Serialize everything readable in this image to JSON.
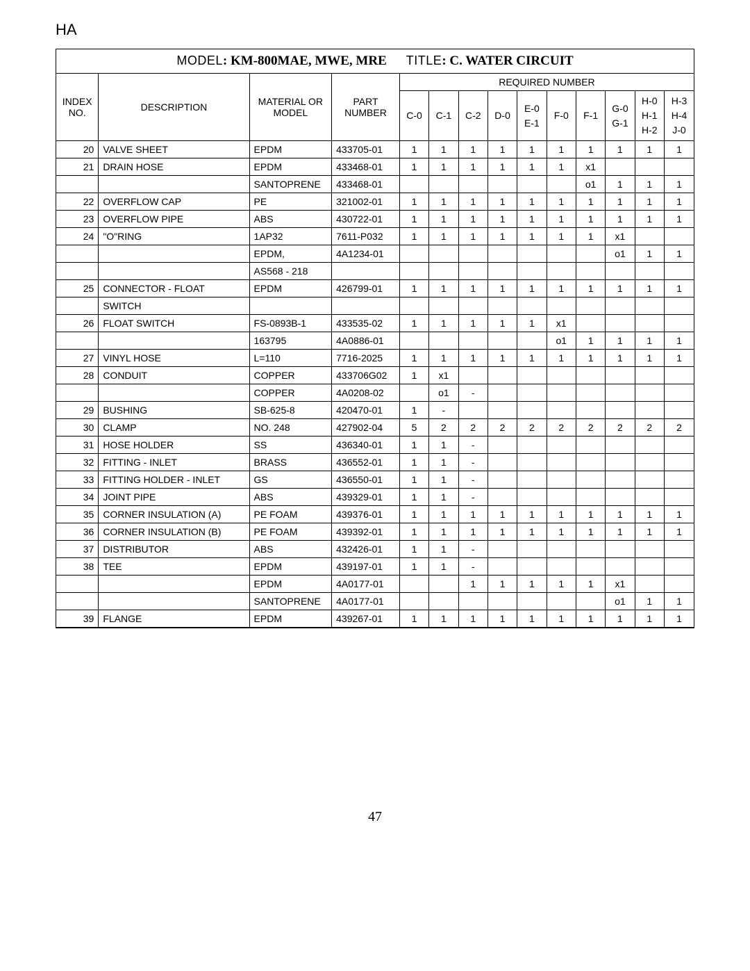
{
  "topLabel": "HA",
  "header": {
    "modelLabel": "MODEL",
    "modelValue": ": KM-800MAE, MWE, MRE",
    "titleLabel": "TITLE",
    "titleValue": ": C. WATER CIRCUIT"
  },
  "columns": {
    "index": "INDEX NO.",
    "description": "DESCRIPTION",
    "material": "MATERIAL OR MODEL",
    "part": "PART NUMBER",
    "required": "REQUIRED NUMBER",
    "subs": [
      [
        "C-0"
      ],
      [
        "C-1"
      ],
      [
        "C-2"
      ],
      [
        "D-0"
      ],
      [
        "E-0",
        "E-1"
      ],
      [
        "F-0"
      ],
      [
        "F-1"
      ],
      [
        "G-0",
        "G-1"
      ],
      [
        "H-0",
        "H-1",
        "H-2"
      ],
      [
        "H-3",
        "H-4",
        "J-0"
      ]
    ]
  },
  "rows": [
    {
      "idx": "20",
      "desc": "VALVE SHEET",
      "mat": "EPDM",
      "part": "433705-01",
      "n": [
        "1",
        "1",
        "1",
        "1",
        "1",
        "1",
        "1",
        "1",
        "1",
        "1"
      ],
      "div": true
    },
    {
      "idx": "21",
      "desc": "DRAIN HOSE",
      "mat": "EPDM",
      "part": "433468-01",
      "n": [
        "1",
        "1",
        "1",
        "1",
        "1",
        "1",
        "x1",
        "",
        "",
        ""
      ],
      "div": false
    },
    {
      "idx": "",
      "desc": "",
      "mat": "SANTOPRENE",
      "part": "433468-01",
      "n": [
        "",
        "",
        "",
        "",
        "",
        "",
        "o1",
        "1",
        "1",
        "1"
      ],
      "div": true
    },
    {
      "idx": "22",
      "desc": "OVERFLOW CAP",
      "mat": "PE",
      "part": "321002-01",
      "n": [
        "1",
        "1",
        "1",
        "1",
        "1",
        "1",
        "1",
        "1",
        "1",
        "1"
      ],
      "div": true
    },
    {
      "idx": "23",
      "desc": "OVERFLOW PIPE",
      "mat": "ABS",
      "part": "430722-01",
      "n": [
        "1",
        "1",
        "1",
        "1",
        "1",
        "1",
        "1",
        "1",
        "1",
        "1"
      ],
      "div": true
    },
    {
      "idx": "24",
      "desc": "\"O\"RING",
      "mat": "1AP32",
      "part": "7611-P032",
      "n": [
        "1",
        "1",
        "1",
        "1",
        "1",
        "1",
        "1",
        "x1",
        "",
        ""
      ],
      "div": false
    },
    {
      "idx": "",
      "desc": "",
      "mat": "EPDM,",
      "part": "4A1234-01",
      "n": [
        "",
        "",
        "",
        "",
        "",
        "",
        "",
        "o1",
        "1",
        "1"
      ],
      "div": false
    },
    {
      "idx": "",
      "desc": "",
      "mat": "AS568 - 218",
      "part": "",
      "n": [
        "",
        "",
        "",
        "",
        "",
        "",
        "",
        "",
        "",
        ""
      ],
      "div": true
    },
    {
      "idx": "25",
      "desc": "CONNECTOR - FLOAT",
      "mat": "EPDM",
      "part": "426799-01",
      "n": [
        "1",
        "1",
        "1",
        "1",
        "1",
        "1",
        "1",
        "1",
        "1",
        "1"
      ],
      "div": false
    },
    {
      "idx": "",
      "desc": "SWITCH",
      "mat": "",
      "part": "",
      "n": [
        "",
        "",
        "",
        "",
        "",
        "",
        "",
        "",
        "",
        ""
      ],
      "div": true
    },
    {
      "idx": "26",
      "desc": "FLOAT SWITCH",
      "mat": "FS-0893B-1",
      "part": "433535-02",
      "n": [
        "1",
        "1",
        "1",
        "1",
        "1",
        "x1",
        "",
        "",
        "",
        ""
      ],
      "div": false
    },
    {
      "idx": "",
      "desc": "",
      "mat": "163795",
      "part": "4A0886-01",
      "n": [
        "",
        "",
        "",
        "",
        "",
        "o1",
        "1",
        "1",
        "1",
        "1"
      ],
      "div": true
    },
    {
      "idx": "27",
      "desc": "VINYL HOSE",
      "mat": "L=110",
      "part": "7716-2025",
      "n": [
        "1",
        "1",
        "1",
        "1",
        "1",
        "1",
        "1",
        "1",
        "1",
        "1"
      ],
      "div": true
    },
    {
      "idx": "28",
      "desc": "CONDUIT",
      "mat": "COPPER",
      "part": "433706G02",
      "n": [
        "1",
        "x1",
        "",
        "",
        "",
        "",
        "",
        "",
        "",
        ""
      ],
      "div": false
    },
    {
      "idx": "",
      "desc": "",
      "mat": "COPPER",
      "part": "4A0208-02",
      "n": [
        "",
        "o1",
        "-",
        "",
        "",
        "",
        "",
        "",
        "",
        ""
      ],
      "div": true
    },
    {
      "idx": "29",
      "desc": "BUSHING",
      "mat": "SB-625-8",
      "part": "420470-01",
      "n": [
        "1",
        "-",
        "",
        "",
        "",
        "",
        "",
        "",
        "",
        ""
      ],
      "div": true
    },
    {
      "idx": "30",
      "desc": "CLAMP",
      "mat": "NO. 248",
      "part": "427902-04",
      "n": [
        "5",
        "2",
        "2",
        "2",
        "2",
        "2",
        "2",
        "2",
        "2",
        "2"
      ],
      "div": true
    },
    {
      "idx": "31",
      "desc": "HOSE HOLDER",
      "mat": "SS",
      "part": "436340-01",
      "n": [
        "1",
        "1",
        "-",
        "",
        "",
        "",
        "",
        "",
        "",
        ""
      ],
      "div": true
    },
    {
      "idx": "32",
      "desc": "FITTING - INLET",
      "mat": "BRASS",
      "part": "436552-01",
      "n": [
        "1",
        "1",
        "-",
        "",
        "",
        "",
        "",
        "",
        "",
        ""
      ],
      "div": true
    },
    {
      "idx": "33",
      "desc": "FITTING HOLDER - INLET",
      "mat": "GS",
      "part": "436550-01",
      "n": [
        "1",
        "1",
        "-",
        "",
        "",
        "",
        "",
        "",
        "",
        ""
      ],
      "div": true
    },
    {
      "idx": "34",
      "desc": "JOINT PIPE",
      "mat": "ABS",
      "part": "439329-01",
      "n": [
        "1",
        "1",
        "-",
        "",
        "",
        "",
        "",
        "",
        "",
        ""
      ],
      "div": true
    },
    {
      "idx": "35",
      "desc": "CORNER INSULATION (A)",
      "mat": "PE FOAM",
      "part": "439376-01",
      "n": [
        "1",
        "1",
        "1",
        "1",
        "1",
        "1",
        "1",
        "1",
        "1",
        "1"
      ],
      "div": true
    },
    {
      "idx": "36",
      "desc": "CORNER INSULATION (B)",
      "mat": "PE FOAM",
      "part": "439392-01",
      "n": [
        "1",
        "1",
        "1",
        "1",
        "1",
        "1",
        "1",
        "1",
        "1",
        "1"
      ],
      "div": true
    },
    {
      "idx": "37",
      "desc": "DISTRIBUTOR",
      "mat": "ABS",
      "part": "432426-01",
      "n": [
        "1",
        "1",
        "-",
        "",
        "",
        "",
        "",
        "",
        "",
        ""
      ],
      "div": true
    },
    {
      "idx": "38",
      "desc": "TEE",
      "mat": "EPDM",
      "part": "439197-01",
      "n": [
        "1",
        "1",
        "-",
        "",
        "",
        "",
        "",
        "",
        "",
        ""
      ],
      "div": false
    },
    {
      "idx": "",
      "desc": "",
      "mat": "EPDM",
      "part": "4A0177-01",
      "n": [
        "",
        "",
        "1",
        "1",
        "1",
        "1",
        "1",
        "x1",
        "",
        ""
      ],
      "div": false
    },
    {
      "idx": "",
      "desc": "",
      "mat": "SANTOPRENE",
      "part": "4A0177-01",
      "n": [
        "",
        "",
        "",
        "",
        "",
        "",
        "",
        "o1",
        "1",
        "1"
      ],
      "div": true
    },
    {
      "idx": "39",
      "desc": "FLANGE",
      "mat": "EPDM",
      "part": "439267-01",
      "n": [
        "1",
        "1",
        "1",
        "1",
        "1",
        "1",
        "1",
        "1",
        "1",
        "1"
      ],
      "div": true
    }
  ],
  "pageNumber": "47"
}
